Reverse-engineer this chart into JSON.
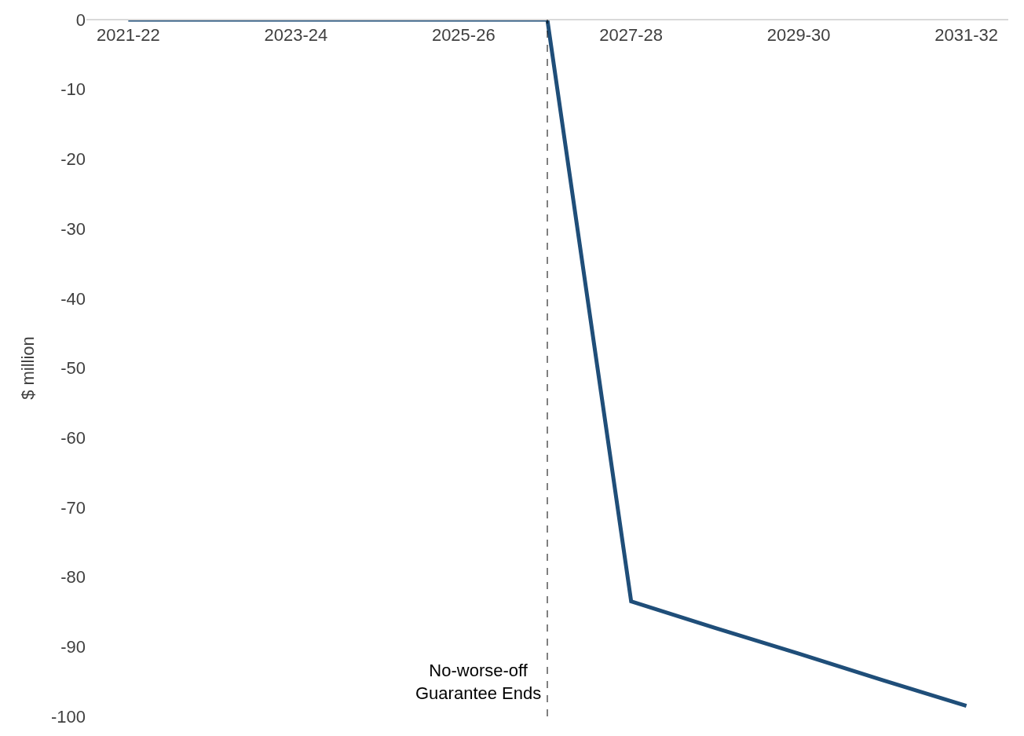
{
  "chart_data": {
    "type": "line",
    "ylabel": "$ million",
    "categories": [
      "2021-22",
      null,
      "2023-24",
      null,
      "2025-26",
      null,
      "2027-28",
      null,
      "2029-30",
      null,
      "2031-32"
    ],
    "series": [
      {
        "color": "#1f4e79",
        "values": [
          0,
          0,
          0,
          0,
          0,
          0,
          -83.5,
          -87.3,
          -91,
          -94.8,
          -98.5
        ]
      }
    ],
    "ylim": [
      -100,
      0
    ],
    "yticks": [
      0,
      -10,
      -20,
      -30,
      -40,
      -50,
      -60,
      -70,
      -80,
      -90,
      -100
    ],
    "annotations": [
      "No-worse-off\nGuarantee Ends"
    ],
    "marker": "none",
    "line_style": "solid"
  }
}
